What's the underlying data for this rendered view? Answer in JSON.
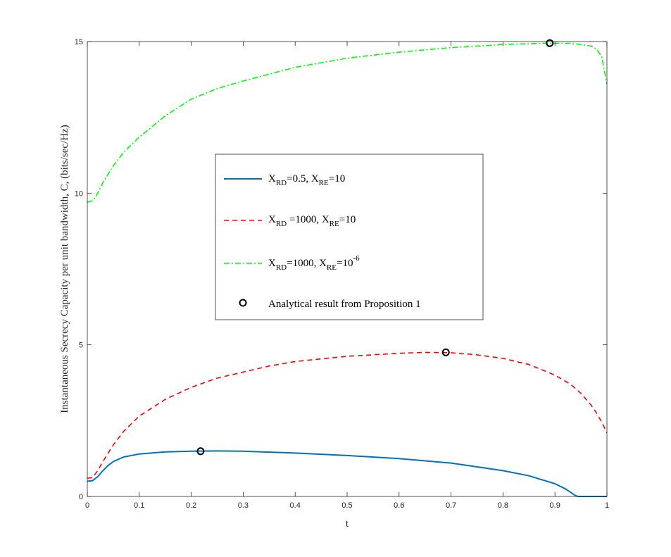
{
  "chart_data": {
    "type": "line",
    "xlabel": "t",
    "ylabel": "Instantaneous Secrecy Capacity per unit bandwidth, C, (bits/sec/Hz)",
    "xlim": [
      0,
      1
    ],
    "ylim": [
      0,
      15
    ],
    "xticks": [
      0,
      0.1,
      0.2,
      0.3,
      0.4,
      0.5,
      0.6,
      0.7,
      0.8,
      0.9,
      1
    ],
    "xtick_labels": [
      "0",
      "0.1",
      "0.2",
      "0.3",
      "0.4",
      "0.5",
      "0.6",
      "0.7",
      "0.8",
      "0.9",
      "1"
    ],
    "yticks": [
      0,
      5,
      10,
      15
    ],
    "ytick_labels": [
      "0",
      "5",
      "10",
      "15"
    ],
    "grid": false,
    "legend_position": "center",
    "series": [
      {
        "color": "#0072BD",
        "style": "solid",
        "x": [
          0,
          0.01,
          0.02,
          0.03,
          0.04,
          0.05,
          0.07,
          0.1,
          0.15,
          0.2,
          0.25,
          0.3,
          0.4,
          0.5,
          0.6,
          0.7,
          0.8,
          0.85,
          0.9,
          0.92,
          0.94,
          0.945,
          1
        ],
        "y": [
          0.5,
          0.52,
          0.65,
          0.85,
          1.02,
          1.15,
          1.3,
          1.4,
          1.47,
          1.49,
          1.5,
          1.49,
          1.43,
          1.35,
          1.25,
          1.1,
          0.85,
          0.68,
          0.42,
          0.25,
          0.02,
          0,
          0
        ]
      },
      {
        "color": "#FF0000",
        "style": "dashed",
        "x": [
          0,
          0.01,
          0.02,
          0.03,
          0.05,
          0.07,
          0.1,
          0.15,
          0.2,
          0.25,
          0.3,
          0.35,
          0.4,
          0.5,
          0.6,
          0.65,
          0.7,
          0.75,
          0.8,
          0.85,
          0.9,
          0.93,
          0.95,
          0.97,
          0.98,
          0.99,
          1
        ],
        "y": [
          0.6,
          0.62,
          0.85,
          1.15,
          1.7,
          2.15,
          2.65,
          3.2,
          3.6,
          3.9,
          4.1,
          4.3,
          4.45,
          4.62,
          4.72,
          4.75,
          4.74,
          4.67,
          4.55,
          4.35,
          4.0,
          3.7,
          3.4,
          3.0,
          2.75,
          2.45,
          2.1
        ]
      },
      {
        "color": "#00FF00",
        "style": "dashdot",
        "x": [
          0,
          0.01,
          0.015,
          0.02,
          0.03,
          0.05,
          0.07,
          0.1,
          0.15,
          0.2,
          0.25,
          0.3,
          0.4,
          0.5,
          0.6,
          0.7,
          0.8,
          0.85,
          0.89,
          0.93,
          0.95,
          0.97,
          0.98,
          0.99,
          1
        ],
        "y": [
          9.7,
          9.75,
          9.85,
          10.0,
          10.35,
          10.9,
          11.35,
          11.85,
          12.55,
          13.1,
          13.45,
          13.7,
          14.15,
          14.45,
          14.65,
          14.8,
          14.9,
          14.93,
          14.95,
          14.94,
          14.9,
          14.85,
          14.75,
          14.5,
          13.6
        ]
      }
    ],
    "analytical_points": {
      "color": "#000000",
      "x": [
        0.218,
        0.69,
        0.89
      ],
      "y": [
        1.49,
        4.75,
        14.95
      ]
    },
    "legend": {
      "entries": [
        {
          "main": "X",
          "sub1": "RD",
          "mid": "=0.5, X",
          "sub2": "RE",
          "tail": "=10",
          "sup": ""
        },
        {
          "main": "X",
          "sub1": "RD",
          "mid": " =1000, X",
          "sub2": "RE",
          "tail": "=10",
          "sup": ""
        },
        {
          "main": "X",
          "sub1": "RD",
          "mid": "=1000, X",
          "sub2": "RE",
          "tail": "=10",
          "sup": "-6"
        },
        {
          "label": "Analytical result  from Proposition 1"
        }
      ]
    }
  }
}
